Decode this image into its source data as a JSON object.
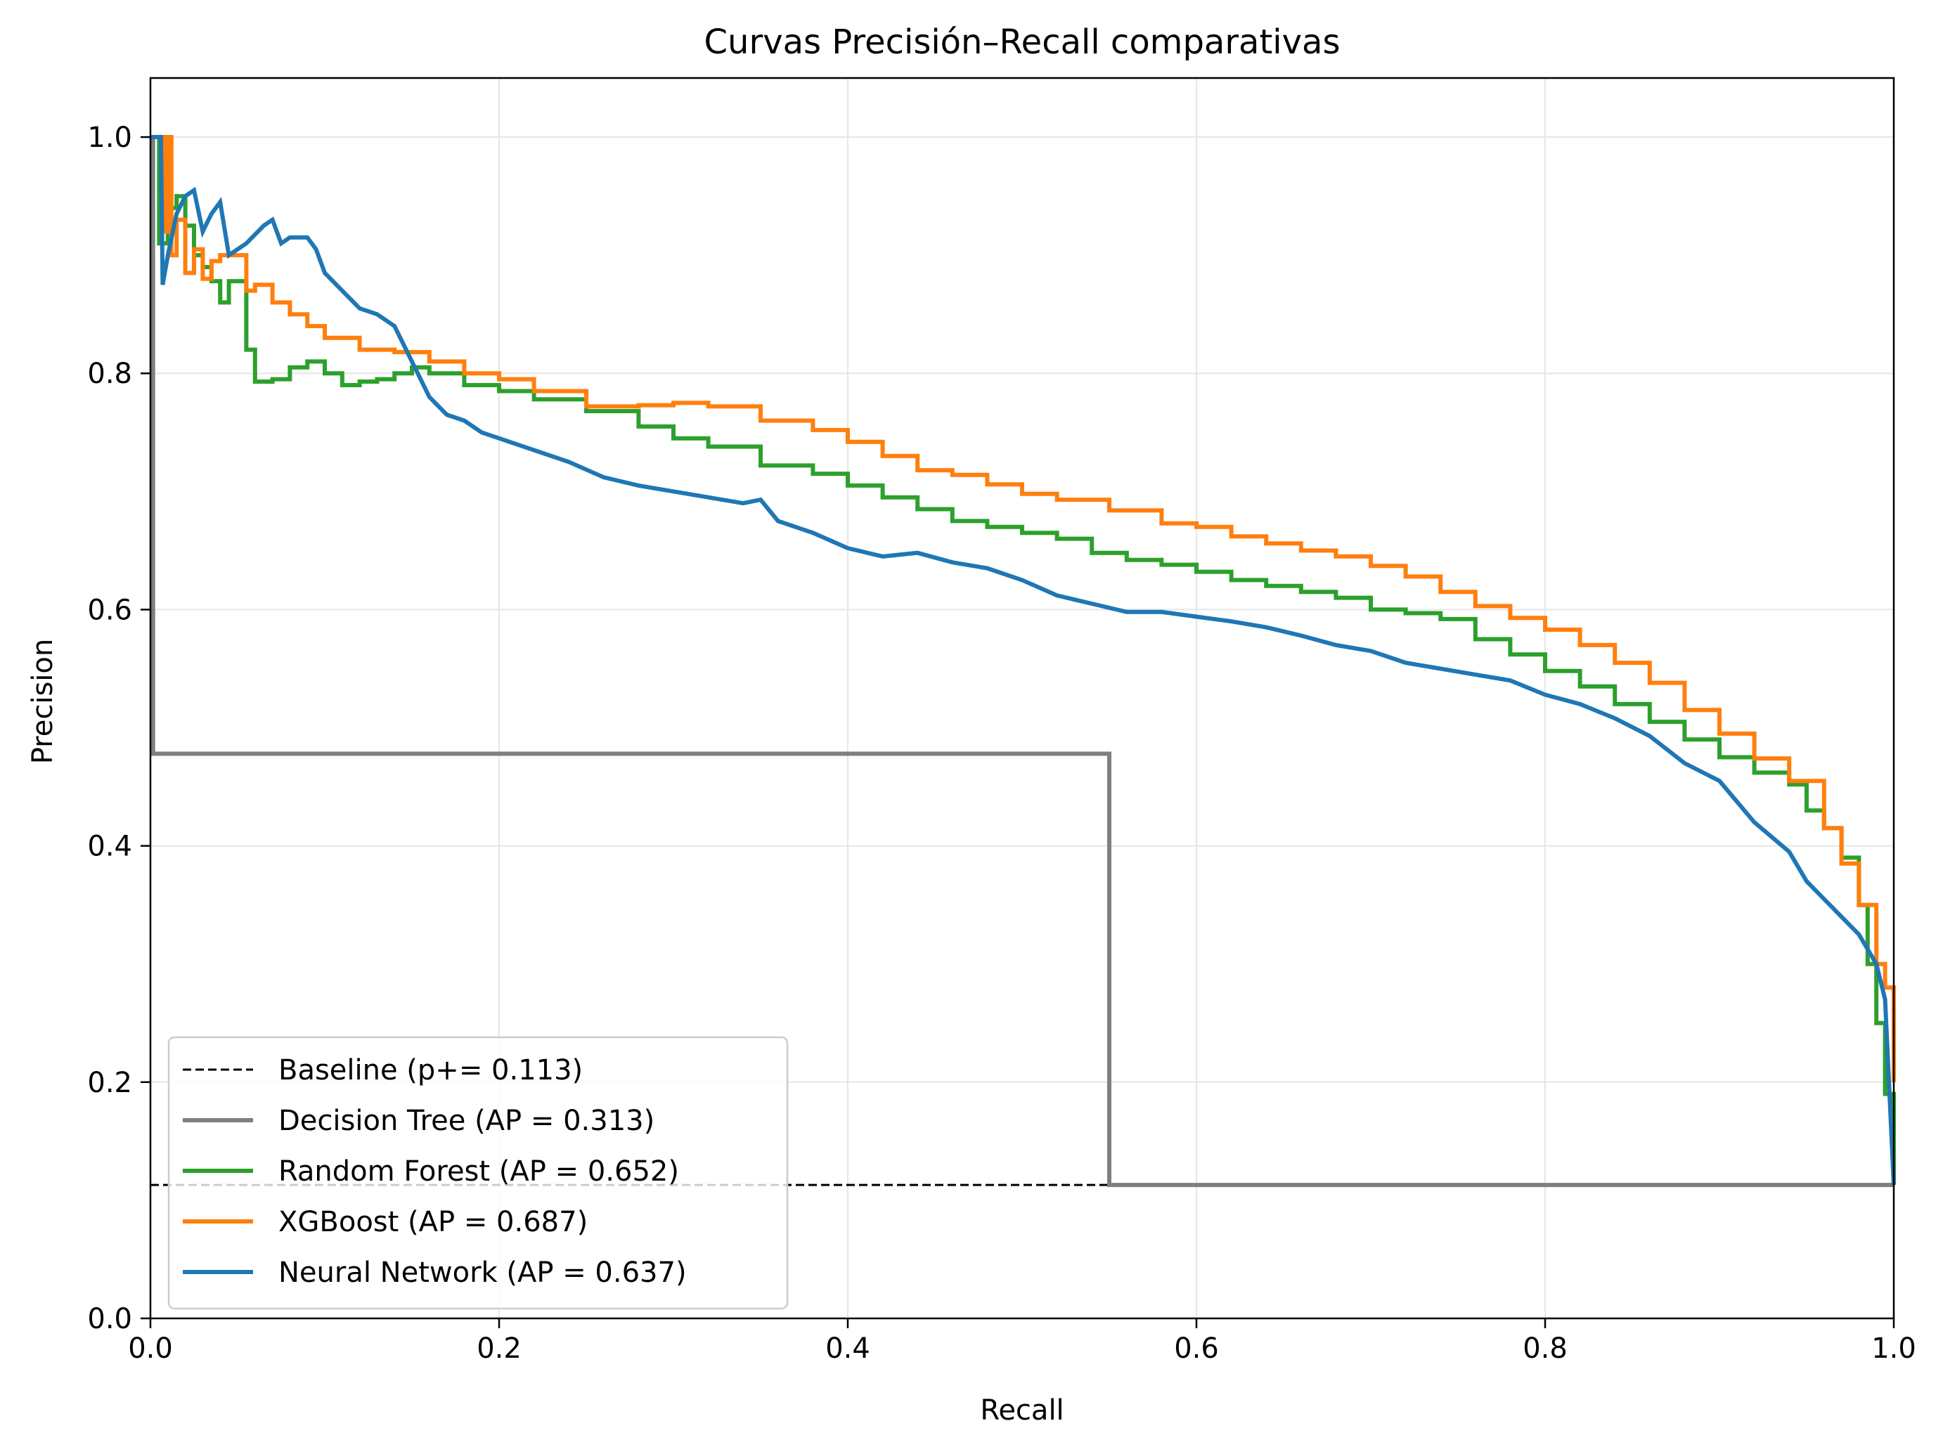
{
  "chart_data": {
    "type": "line",
    "title": "Curvas Precisión–Recall comparativas",
    "xlabel": "Recall",
    "ylabel": "Precision",
    "xlim": [
      0,
      1
    ],
    "ylim": [
      0,
      1.05
    ],
    "xticks": [
      0.0,
      0.2,
      0.4,
      0.6,
      0.8,
      1.0
    ],
    "xtick_labels": [
      "0.0",
      "0.2",
      "0.4",
      "0.6",
      "0.8",
      "1.0"
    ],
    "yticks": [
      0.0,
      0.2,
      0.4,
      0.6,
      0.8,
      1.0
    ],
    "ytick_labels": [
      "0.0",
      "0.2",
      "0.4",
      "0.6",
      "0.8",
      "1.0"
    ],
    "grid": true,
    "legend_position": "lower-left",
    "series": [
      {
        "name": "Baseline (p+= 0.113)",
        "color": "#000000",
        "dashed": true,
        "step": false,
        "points": [
          [
            0,
            0.113
          ],
          [
            1,
            0.113
          ]
        ]
      },
      {
        "name": "Decision Tree (AP = 0.313)",
        "color": "#7f7f7f",
        "dashed": false,
        "step": true,
        "points": [
          [
            0,
            1.0
          ],
          [
            0.0015,
            0.478
          ],
          [
            0.55,
            0.478
          ],
          [
            0.55,
            0.113
          ],
          [
            1.0,
            0.113
          ]
        ]
      },
      {
        "name": "Random Forest (AP = 0.652)",
        "color": "#2ca02c",
        "dashed": false,
        "step": true,
        "points": [
          [
            0,
            1.0
          ],
          [
            0.004,
            1.0
          ],
          [
            0.005,
            0.91
          ],
          [
            0.01,
            0.94
          ],
          [
            0.015,
            0.95
          ],
          [
            0.02,
            0.925
          ],
          [
            0.025,
            0.9
          ],
          [
            0.03,
            0.89
          ],
          [
            0.035,
            0.878
          ],
          [
            0.04,
            0.86
          ],
          [
            0.045,
            0.878
          ],
          [
            0.055,
            0.82
          ],
          [
            0.06,
            0.793
          ],
          [
            0.07,
            0.795
          ],
          [
            0.08,
            0.805
          ],
          [
            0.09,
            0.81
          ],
          [
            0.1,
            0.8
          ],
          [
            0.11,
            0.79
          ],
          [
            0.12,
            0.793
          ],
          [
            0.13,
            0.795
          ],
          [
            0.14,
            0.8
          ],
          [
            0.15,
            0.805
          ],
          [
            0.16,
            0.8
          ],
          [
            0.18,
            0.79
          ],
          [
            0.2,
            0.785
          ],
          [
            0.22,
            0.778
          ],
          [
            0.25,
            0.768
          ],
          [
            0.28,
            0.755
          ],
          [
            0.3,
            0.745
          ],
          [
            0.32,
            0.738
          ],
          [
            0.35,
            0.722
          ],
          [
            0.38,
            0.715
          ],
          [
            0.4,
            0.705
          ],
          [
            0.42,
            0.695
          ],
          [
            0.44,
            0.685
          ],
          [
            0.46,
            0.675
          ],
          [
            0.48,
            0.67
          ],
          [
            0.5,
            0.665
          ],
          [
            0.52,
            0.66
          ],
          [
            0.54,
            0.648
          ],
          [
            0.56,
            0.642
          ],
          [
            0.58,
            0.638
          ],
          [
            0.6,
            0.632
          ],
          [
            0.62,
            0.625
          ],
          [
            0.64,
            0.62
          ],
          [
            0.66,
            0.615
          ],
          [
            0.68,
            0.61
          ],
          [
            0.7,
            0.6
          ],
          [
            0.72,
            0.597
          ],
          [
            0.74,
            0.592
          ],
          [
            0.76,
            0.575
          ],
          [
            0.78,
            0.562
          ],
          [
            0.8,
            0.548
          ],
          [
            0.82,
            0.535
          ],
          [
            0.84,
            0.52
          ],
          [
            0.86,
            0.505
          ],
          [
            0.88,
            0.49
          ],
          [
            0.9,
            0.475
          ],
          [
            0.92,
            0.462
          ],
          [
            0.94,
            0.452
          ],
          [
            0.95,
            0.43
          ],
          [
            0.96,
            0.415
          ],
          [
            0.97,
            0.39
          ],
          [
            0.98,
            0.35
          ],
          [
            0.985,
            0.3
          ],
          [
            0.99,
            0.25
          ],
          [
            0.995,
            0.19
          ],
          [
            1.0,
            0.113
          ]
        ]
      },
      {
        "name": "XGBoost (AP = 0.687)",
        "color": "#ff7f0e",
        "dashed": false,
        "step": true,
        "points": [
          [
            0,
            1.0
          ],
          [
            0.006,
            1.0
          ],
          [
            0.008,
            0.92
          ],
          [
            0.01,
            1.0
          ],
          [
            0.012,
            0.9
          ],
          [
            0.015,
            0.93
          ],
          [
            0.02,
            0.885
          ],
          [
            0.025,
            0.905
          ],
          [
            0.03,
            0.88
          ],
          [
            0.035,
            0.895
          ],
          [
            0.04,
            0.9
          ],
          [
            0.05,
            0.9
          ],
          [
            0.055,
            0.87
          ],
          [
            0.06,
            0.875
          ],
          [
            0.07,
            0.86
          ],
          [
            0.08,
            0.85
          ],
          [
            0.09,
            0.84
          ],
          [
            0.1,
            0.83
          ],
          [
            0.11,
            0.83
          ],
          [
            0.12,
            0.82
          ],
          [
            0.14,
            0.818
          ],
          [
            0.16,
            0.81
          ],
          [
            0.18,
            0.8
          ],
          [
            0.2,
            0.795
          ],
          [
            0.22,
            0.785
          ],
          [
            0.25,
            0.772
          ],
          [
            0.28,
            0.773
          ],
          [
            0.3,
            0.775
          ],
          [
            0.32,
            0.772
          ],
          [
            0.35,
            0.76
          ],
          [
            0.38,
            0.752
          ],
          [
            0.4,
            0.742
          ],
          [
            0.42,
            0.73
          ],
          [
            0.44,
            0.718
          ],
          [
            0.46,
            0.714
          ],
          [
            0.48,
            0.706
          ],
          [
            0.5,
            0.698
          ],
          [
            0.52,
            0.693
          ],
          [
            0.55,
            0.684
          ],
          [
            0.58,
            0.673
          ],
          [
            0.6,
            0.67
          ],
          [
            0.62,
            0.662
          ],
          [
            0.64,
            0.656
          ],
          [
            0.66,
            0.65
          ],
          [
            0.68,
            0.645
          ],
          [
            0.7,
            0.637
          ],
          [
            0.72,
            0.628
          ],
          [
            0.74,
            0.615
          ],
          [
            0.76,
            0.603
          ],
          [
            0.78,
            0.593
          ],
          [
            0.8,
            0.583
          ],
          [
            0.82,
            0.57
          ],
          [
            0.84,
            0.555
          ],
          [
            0.86,
            0.538
          ],
          [
            0.88,
            0.515
          ],
          [
            0.9,
            0.495
          ],
          [
            0.92,
            0.474
          ],
          [
            0.94,
            0.455
          ],
          [
            0.96,
            0.415
          ],
          [
            0.97,
            0.385
          ],
          [
            0.98,
            0.35
          ],
          [
            0.99,
            0.3
          ],
          [
            0.995,
            0.28
          ],
          [
            1.0,
            0.2
          ]
        ]
      },
      {
        "name": "Neural Network (AP = 0.637)",
        "color": "#1f77b4",
        "dashed": false,
        "step": false,
        "points": [
          [
            0,
            1.0
          ],
          [
            0.006,
            1.0
          ],
          [
            0.007,
            0.875
          ],
          [
            0.01,
            0.9
          ],
          [
            0.015,
            0.935
          ],
          [
            0.02,
            0.95
          ],
          [
            0.025,
            0.955
          ],
          [
            0.03,
            0.92
          ],
          [
            0.035,
            0.935
          ],
          [
            0.04,
            0.945
          ],
          [
            0.045,
            0.9
          ],
          [
            0.055,
            0.91
          ],
          [
            0.065,
            0.925
          ],
          [
            0.07,
            0.93
          ],
          [
            0.075,
            0.91
          ],
          [
            0.08,
            0.915
          ],
          [
            0.09,
            0.915
          ],
          [
            0.095,
            0.905
          ],
          [
            0.1,
            0.885
          ],
          [
            0.11,
            0.87
          ],
          [
            0.12,
            0.855
          ],
          [
            0.13,
            0.85
          ],
          [
            0.14,
            0.84
          ],
          [
            0.15,
            0.81
          ],
          [
            0.16,
            0.78
          ],
          [
            0.17,
            0.765
          ],
          [
            0.18,
            0.76
          ],
          [
            0.19,
            0.75
          ],
          [
            0.2,
            0.745
          ],
          [
            0.22,
            0.735
          ],
          [
            0.24,
            0.725
          ],
          [
            0.26,
            0.712
          ],
          [
            0.28,
            0.705
          ],
          [
            0.3,
            0.7
          ],
          [
            0.32,
            0.695
          ],
          [
            0.34,
            0.69
          ],
          [
            0.35,
            0.693
          ],
          [
            0.36,
            0.675
          ],
          [
            0.38,
            0.665
          ],
          [
            0.4,
            0.652
          ],
          [
            0.42,
            0.645
          ],
          [
            0.44,
            0.648
          ],
          [
            0.46,
            0.64
          ],
          [
            0.48,
            0.635
          ],
          [
            0.5,
            0.625
          ],
          [
            0.52,
            0.612
          ],
          [
            0.54,
            0.605
          ],
          [
            0.56,
            0.598
          ],
          [
            0.58,
            0.598
          ],
          [
            0.6,
            0.594
          ],
          [
            0.62,
            0.59
          ],
          [
            0.64,
            0.585
          ],
          [
            0.66,
            0.578
          ],
          [
            0.68,
            0.57
          ],
          [
            0.7,
            0.565
          ],
          [
            0.72,
            0.555
          ],
          [
            0.74,
            0.55
          ],
          [
            0.76,
            0.545
          ],
          [
            0.78,
            0.54
          ],
          [
            0.8,
            0.528
          ],
          [
            0.82,
            0.52
          ],
          [
            0.84,
            0.508
          ],
          [
            0.86,
            0.493
          ],
          [
            0.88,
            0.47
          ],
          [
            0.9,
            0.455
          ],
          [
            0.92,
            0.42
          ],
          [
            0.94,
            0.395
          ],
          [
            0.95,
            0.37
          ],
          [
            0.96,
            0.355
          ],
          [
            0.97,
            0.34
          ],
          [
            0.98,
            0.325
          ],
          [
            0.99,
            0.3
          ],
          [
            0.995,
            0.27
          ],
          [
            1.0,
            0.113
          ]
        ]
      }
    ]
  }
}
